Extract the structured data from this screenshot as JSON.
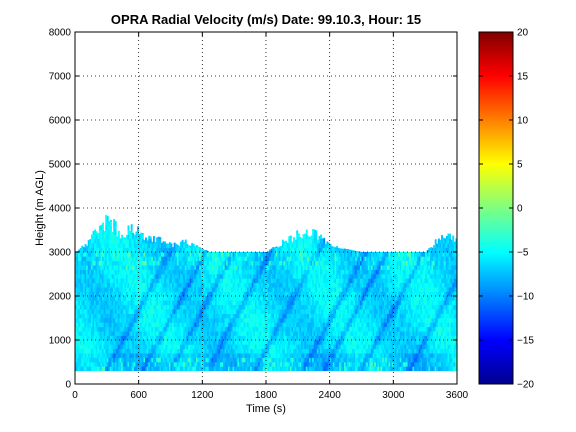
{
  "chart_data": {
    "type": "heatmap",
    "title": "OPRA Radial Velocity (m/s)  Date: 99.10.3, Hour: 15",
    "xlabel": "Time (s)",
    "ylabel": "Height (m AGL)",
    "xlim": [
      0,
      3600
    ],
    "ylim": [
      0,
      8000
    ],
    "xticks": [
      0,
      600,
      1200,
      1800,
      2400,
      3000,
      3600
    ],
    "xtick_labels": [
      "0",
      "600",
      "1200",
      "1800",
      "2400",
      "3000",
      "3600"
    ],
    "yticks": [
      0,
      1000,
      2000,
      3000,
      4000,
      5000,
      6000,
      7000,
      8000
    ],
    "ytick_labels": [
      "0",
      "1000",
      "2000",
      "3000",
      "4000",
      "5000",
      "6000",
      "7000",
      "8000"
    ],
    "grid": true,
    "colormap": "jet",
    "clim": [
      -20,
      20
    ],
    "colorbar_ticks": [
      -20,
      -15,
      -10,
      -5,
      0,
      5,
      10,
      15,
      20
    ],
    "colorbar_labels": [
      "−20",
      "−15",
      "−10",
      "−5",
      "0",
      "5",
      "10",
      "15",
      "20"
    ],
    "data_extent": {
      "height_min": 300,
      "height_top_typical": 3000,
      "height_top_max": 4000,
      "value_range": [
        -10,
        -2
      ]
    },
    "echo_top_heights": [
      {
        "time": 0,
        "height": 3000
      },
      {
        "time": 120,
        "height": 3300
      },
      {
        "time": 240,
        "height": 3800
      },
      {
        "time": 330,
        "height": 3950
      },
      {
        "time": 420,
        "height": 3500
      },
      {
        "time": 540,
        "height": 3700
      },
      {
        "time": 660,
        "height": 3400
      },
      {
        "time": 780,
        "height": 3400
      },
      {
        "time": 900,
        "height": 3200
      },
      {
        "time": 1020,
        "height": 3300
      },
      {
        "time": 1140,
        "height": 3200
      },
      {
        "time": 1260,
        "height": 3000
      },
      {
        "time": 1500,
        "height": 3000
      },
      {
        "time": 1800,
        "height": 3000
      },
      {
        "time": 2040,
        "height": 3450
      },
      {
        "time": 2160,
        "height": 3600
      },
      {
        "time": 2280,
        "height": 3500
      },
      {
        "time": 2400,
        "height": 3200
      },
      {
        "time": 2520,
        "height": 3100
      },
      {
        "time": 2700,
        "height": 3000
      },
      {
        "time": 3000,
        "height": 3000
      },
      {
        "time": 3300,
        "height": 3000
      },
      {
        "time": 3420,
        "height": 3400
      },
      {
        "time": 3560,
        "height": 3450
      }
    ]
  },
  "colors": {
    "background": "#ffffff",
    "axes": "#000000",
    "grid": "#000000",
    "dominant_data": "#33bbee",
    "streak_data": "#1177dd",
    "light_data": "#55ddcc"
  }
}
